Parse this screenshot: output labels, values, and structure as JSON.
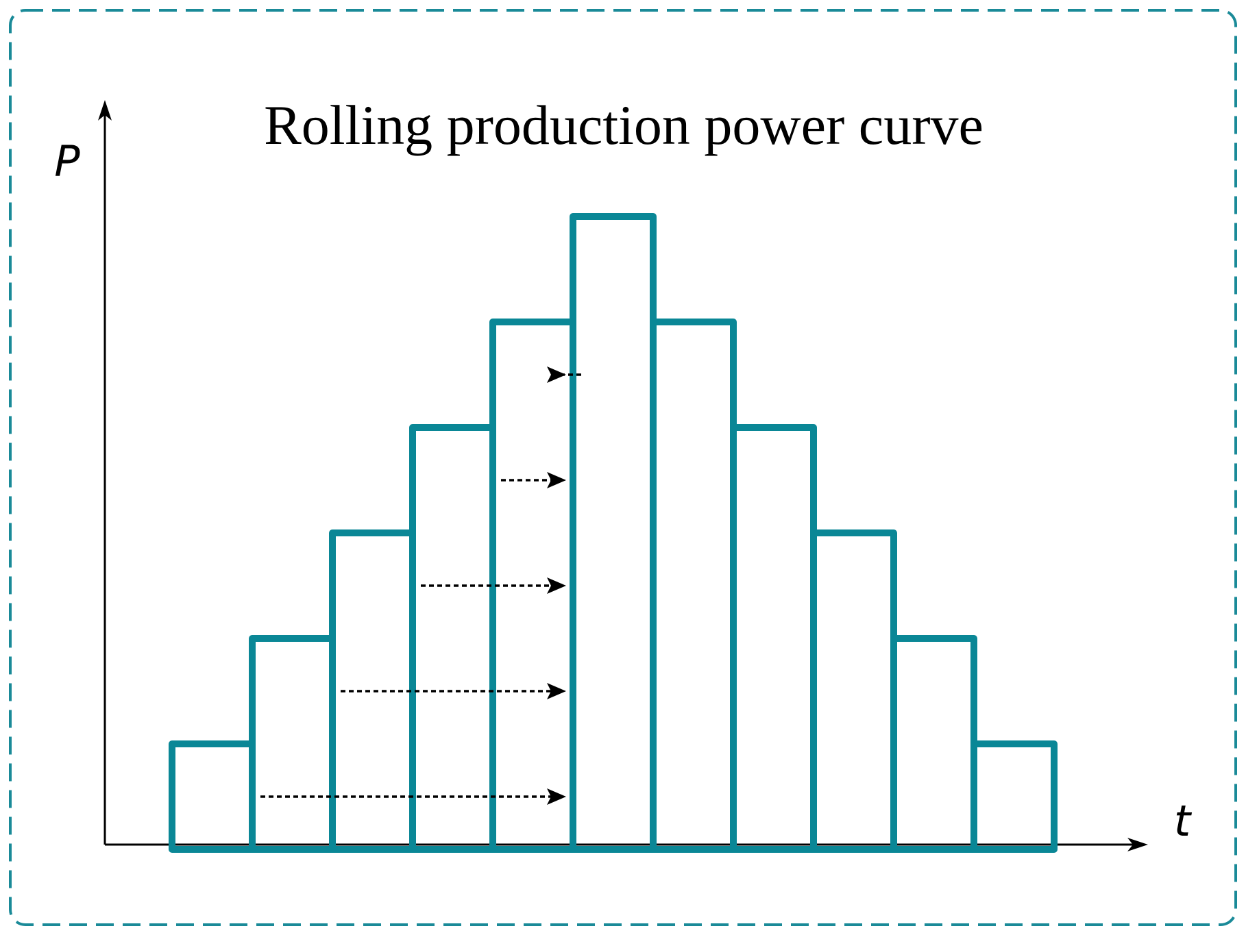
{
  "chart_data": {
    "type": "bar",
    "title": "Rolling production power curve",
    "xlabel": "t",
    "ylabel": "P",
    "values": [
      1,
      2,
      3,
      4,
      5,
      6,
      5,
      4,
      3,
      2,
      1
    ],
    "ylim": [
      0,
      6
    ],
    "grid": false,
    "legend": "none",
    "bar_style": "outline",
    "shift_arrows": [
      {
        "from_bar": 2,
        "to_bar": 6,
        "level": 1
      },
      {
        "from_bar": 3,
        "to_bar": 6,
        "level": 2
      },
      {
        "from_bar": 4,
        "to_bar": 6,
        "level": 3
      },
      {
        "from_bar": 5,
        "to_bar": 6,
        "level": 4
      },
      {
        "from_bar": 6,
        "to_bar": 6,
        "level": 5
      }
    ]
  },
  "colors": {
    "bar_stroke": "#0a8796",
    "frame_stroke": "#1a8a98",
    "axis": "#000000",
    "arrow": "#000000"
  }
}
